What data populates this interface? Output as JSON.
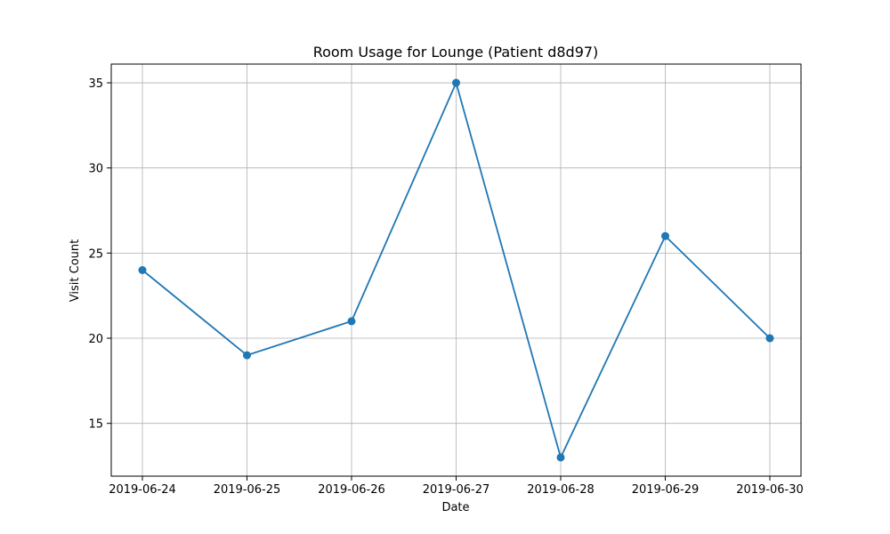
{
  "chart_data": {
    "type": "line",
    "title": "Room Usage for Lounge (Patient d8d97)",
    "xlabel": "Date",
    "ylabel": "Visit Count",
    "categories": [
      "2019-06-24",
      "2019-06-25",
      "2019-06-26",
      "2019-06-27",
      "2019-06-28",
      "2019-06-29",
      "2019-06-30"
    ],
    "series": [
      {
        "values": [
          24,
          19,
          21,
          35,
          13,
          26,
          20
        ]
      }
    ],
    "ylim": [
      11.9,
      36.1
    ],
    "yticks": [
      15,
      20,
      25,
      30,
      35
    ],
    "grid": true,
    "line_color": "#1f77b4",
    "grid_color": "#b0b0b0"
  }
}
